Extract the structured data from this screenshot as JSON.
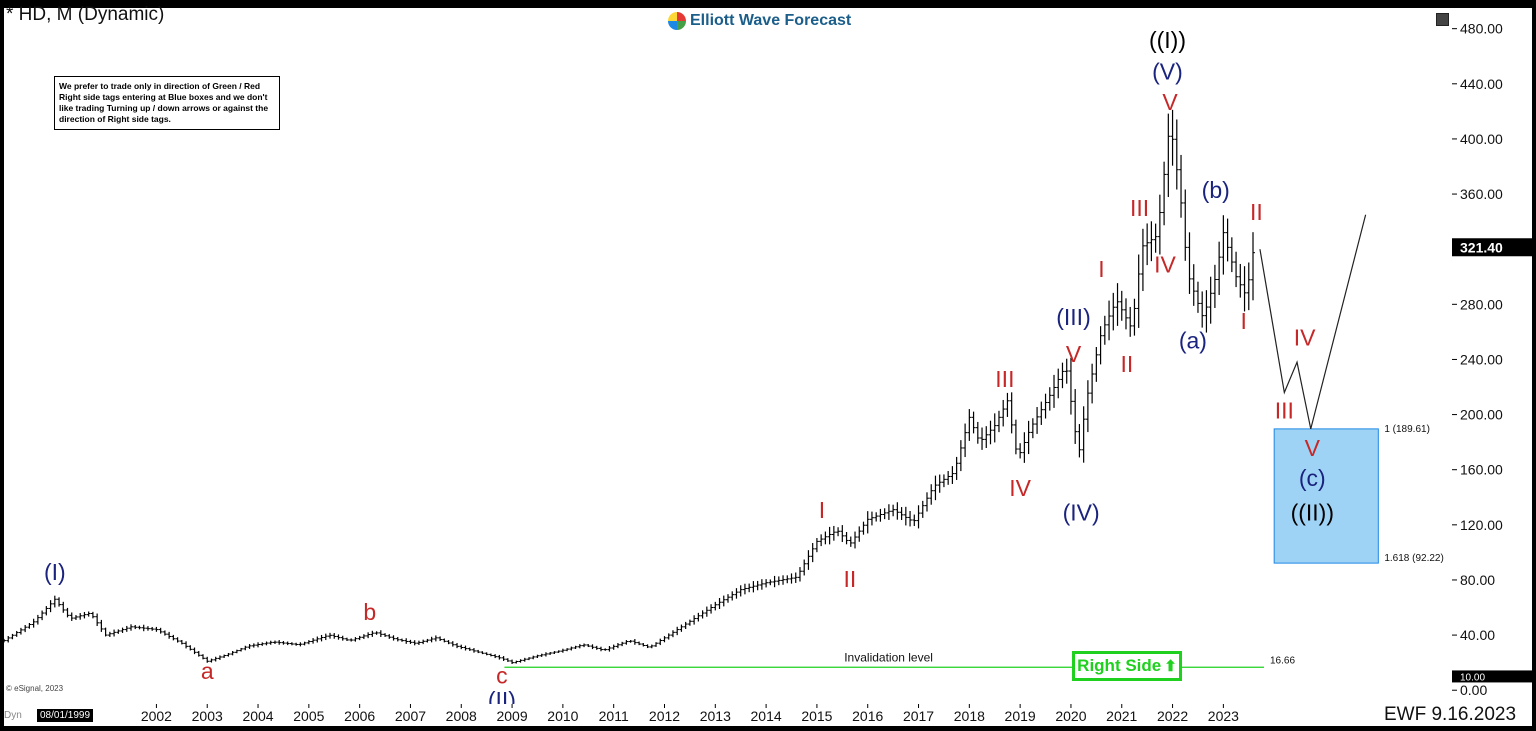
{
  "header": {
    "title": "* HD, M (Dynamic)",
    "brand": "Elliott Wave Forecast",
    "note": "We prefer to trade only in direction of Green / Red Right side tags entering at Blue boxes and we don't like trading Turning up / down arrows or against the direction of Right side tags."
  },
  "footer": {
    "copyright": "© eSignal, 2023",
    "dyn": "Dyn",
    "start_date": "08/01/1999",
    "stamp": "EWF 9.16.2023"
  },
  "right_side_tag": {
    "label": "Right Side",
    "arrow": "⬆",
    "color": "#1fd01f"
  },
  "colors": {
    "wave_red": "#c62828",
    "wave_blue": "#1a237e",
    "wave_black": "#000000",
    "box_fill": "#9fd3f5",
    "box_stroke": "#1e88e5",
    "invalidation_line": "#1fd01f"
  },
  "chart_data": {
    "type": "bar",
    "title": "* HD, M (Dynamic)",
    "price_axis": {
      "ticks": [
        0,
        40,
        80,
        120,
        160,
        200,
        240,
        280,
        320,
        360,
        400,
        440,
        480
      ],
      "tick_labels": [
        "0.00",
        "40.00",
        "80.00",
        "120.00",
        "160.00",
        "200.00",
        "240.00",
        "280.00",
        "320.00",
        "360.00",
        "400.00",
        "440.00",
        "480.00"
      ],
      "range": [
        -10,
        495
      ]
    },
    "time_axis": {
      "years": [
        2002,
        2003,
        2004,
        2005,
        2006,
        2007,
        2008,
        2009,
        2010,
        2011,
        2012,
        2013,
        2014,
        2015,
        2016,
        2017,
        2018,
        2019,
        2020,
        2021,
        2022,
        2023
      ],
      "range": [
        1999.0,
        2027.5
      ]
    },
    "last_price": {
      "value": 321.4,
      "label": "321.40"
    },
    "level_tag": {
      "value": 10.0,
      "label": "10.00"
    },
    "price_path": [
      [
        1999.0,
        36
      ],
      [
        1999.6,
        50
      ],
      [
        2000.0,
        66
      ],
      [
        2000.3,
        52
      ],
      [
        2000.7,
        56
      ],
      [
        2001.0,
        40
      ],
      [
        2001.5,
        46
      ],
      [
        2002.0,
        44
      ],
      [
        2002.5,
        34
      ],
      [
        2003.0,
        21
      ],
      [
        2003.4,
        26
      ],
      [
        2003.8,
        32
      ],
      [
        2004.3,
        35
      ],
      [
        2004.8,
        33
      ],
      [
        2005.4,
        40
      ],
      [
        2005.8,
        36
      ],
      [
        2006.3,
        42
      ],
      [
        2006.7,
        37
      ],
      [
        2007.1,
        34
      ],
      [
        2007.5,
        38
      ],
      [
        2007.9,
        32
      ],
      [
        2008.3,
        28
      ],
      [
        2008.8,
        23
      ],
      [
        2009.0,
        20
      ],
      [
        2009.5,
        25
      ],
      [
        2010.0,
        29
      ],
      [
        2010.4,
        33
      ],
      [
        2010.8,
        29
      ],
      [
        2011.3,
        36
      ],
      [
        2011.7,
        31
      ],
      [
        2012.0,
        38
      ],
      [
        2012.5,
        50
      ],
      [
        2013.0,
        62
      ],
      [
        2013.5,
        73
      ],
      [
        2014.0,
        78
      ],
      [
        2014.6,
        82
      ],
      [
        2015.0,
        108
      ],
      [
        2015.4,
        116
      ],
      [
        2015.65,
        106
      ],
      [
        2016.0,
        124
      ],
      [
        2016.5,
        131
      ],
      [
        2016.9,
        122
      ],
      [
        2017.3,
        148
      ],
      [
        2017.7,
        158
      ],
      [
        2018.0,
        198
      ],
      [
        2018.2,
        180
      ],
      [
        2018.5,
        192
      ],
      [
        2018.75,
        210
      ],
      [
        2018.95,
        168
      ],
      [
        2019.2,
        190
      ],
      [
        2019.6,
        215
      ],
      [
        2019.9,
        236
      ],
      [
        2020.15,
        170
      ],
      [
        2020.3,
        210
      ],
      [
        2020.6,
        260
      ],
      [
        2020.9,
        283
      ],
      [
        2021.2,
        262
      ],
      [
        2021.4,
        322
      ],
      [
        2021.7,
        330
      ],
      [
        2021.95,
        413
      ],
      [
        2022.15,
        360
      ],
      [
        2022.3,
        302
      ],
      [
        2022.6,
        270
      ],
      [
        2022.85,
        300
      ],
      [
        2023.0,
        332
      ],
      [
        2023.25,
        300
      ],
      [
        2023.45,
        286
      ],
      [
        2023.6,
        321.4
      ]
    ],
    "projection_path": [
      [
        2023.72,
        320
      ],
      [
        2024.2,
        216
      ],
      [
        2024.45,
        238
      ],
      [
        2024.72,
        189.61
      ],
      [
        2025.8,
        345
      ]
    ],
    "invalidation": {
      "value": 16.66,
      "label": "16.66",
      "text": "Invalidation level",
      "x_range": [
        2008.85,
        2023.8
      ]
    },
    "target_box": {
      "x_range": [
        2024.0,
        2026.05
      ],
      "top": 189.61,
      "bottom": 92.22,
      "top_label": "1 (189.61)",
      "bottom_label": "1.618 (92.22)"
    },
    "wave_labels": [
      {
        "text": "(I)",
        "x": 2000.0,
        "y": 80,
        "color": "blue"
      },
      {
        "text": "a",
        "x": 2003.0,
        "y": 8,
        "color": "red"
      },
      {
        "text": "b",
        "x": 2006.2,
        "y": 51,
        "color": "red"
      },
      {
        "text": "c",
        "x": 2008.8,
        "y": 5,
        "color": "red"
      },
      {
        "text": "(II)",
        "x": 2008.8,
        "y": -13,
        "color": "blue"
      },
      {
        "text": "I",
        "x": 2015.1,
        "y": 125,
        "color": "red"
      },
      {
        "text": "II",
        "x": 2015.65,
        "y": 75,
        "color": "red"
      },
      {
        "text": "III",
        "x": 2018.7,
        "y": 220,
        "color": "red"
      },
      {
        "text": "IV",
        "x": 2019.0,
        "y": 141,
        "color": "red"
      },
      {
        "text": "(III)",
        "x": 2020.05,
        "y": 265,
        "color": "blue"
      },
      {
        "text": "V",
        "x": 2020.05,
        "y": 238,
        "color": "red"
      },
      {
        "text": "(IV)",
        "x": 2020.2,
        "y": 123,
        "color": "blue"
      },
      {
        "text": "I",
        "x": 2020.6,
        "y": 300,
        "color": "red"
      },
      {
        "text": "II",
        "x": 2021.1,
        "y": 231,
        "color": "red"
      },
      {
        "text": "III",
        "x": 2021.35,
        "y": 344,
        "color": "red"
      },
      {
        "text": "IV",
        "x": 2021.85,
        "y": 303,
        "color": "red"
      },
      {
        "text": "V",
        "x": 2021.95,
        "y": 421,
        "color": "red"
      },
      {
        "text": "(V)",
        "x": 2021.9,
        "y": 443,
        "color": "blue"
      },
      {
        "text": "((I))",
        "x": 2021.9,
        "y": 466,
        "color": "black"
      },
      {
        "text": "(a)",
        "x": 2022.4,
        "y": 248,
        "color": "blue"
      },
      {
        "text": "(b)",
        "x": 2022.85,
        "y": 357,
        "color": "blue"
      },
      {
        "text": "I",
        "x": 2023.4,
        "y": 262,
        "color": "red"
      },
      {
        "text": "II",
        "x": 2023.65,
        "y": 341,
        "color": "red"
      },
      {
        "text": "III",
        "x": 2024.2,
        "y": 197,
        "color": "red"
      },
      {
        "text": "IV",
        "x": 2024.6,
        "y": 250,
        "color": "red"
      },
      {
        "text": "V",
        "x": 2024.75,
        "y": 170,
        "color": "red"
      },
      {
        "text": "(c)",
        "x": 2024.75,
        "y": 148,
        "color": "blue"
      },
      {
        "text": "((II))",
        "x": 2024.75,
        "y": 123,
        "color": "black"
      }
    ]
  }
}
